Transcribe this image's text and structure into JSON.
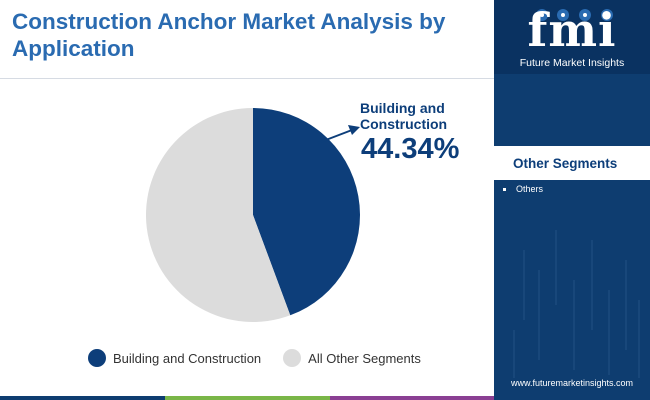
{
  "title": "Construction Anchor Market Analysis by Application",
  "chart_data": {
    "type": "pie",
    "categories": [
      "Building and Construction",
      "All Other Segments"
    ],
    "values": [
      44.34,
      55.66
    ],
    "colors": [
      "#0d3e7a",
      "#dcdcdc"
    ],
    "callout": {
      "label": "Building and Construction",
      "value": "44.34%"
    },
    "legend": [
      "Building and Construction",
      "All Other Segments"
    ],
    "legend_position": "bottom"
  },
  "side_panel": {
    "logo_letters": "fmi",
    "logo_text": "Future Market Insights",
    "segments_title": "Other Segments",
    "segments": [
      "Others"
    ],
    "website": "www.futuremarketinsights.com"
  },
  "colors": {
    "title": "#2a6bb1",
    "primary": "#0d3e7a",
    "panel": "#0e3d70",
    "bar": [
      "#0e3d70",
      "#7ab648",
      "#8a3f93",
      "#0e3d70"
    ]
  }
}
